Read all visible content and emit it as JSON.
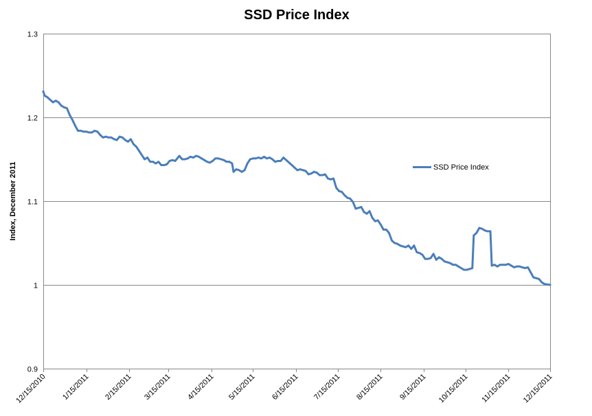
{
  "chart_data": {
    "type": "line",
    "title": "SSD Price Index",
    "xlabel": "",
    "ylabel": "Index, December 2011",
    "ylim": [
      0.9,
      1.3
    ],
    "yticks": [
      "0.9",
      "1",
      "1.1",
      "1.2",
      "1.3"
    ],
    "xlim": [
      "2010-12-15",
      "2011-12-15"
    ],
    "xticks": [
      "12/15/2010",
      "1/15/2011",
      "2/15/2011",
      "3/15/2011",
      "4/15/2011",
      "5/15/2011",
      "6/15/2011",
      "7/15/2011",
      "8/15/2011",
      "9/15/2011",
      "10/15/2011",
      "11/15/2011",
      "12/15/2011"
    ],
    "grid": "horizontal",
    "legend": "right",
    "series": [
      {
        "name": "SSD Price Index",
        "color": "#4a7ebb",
        "points": [
          [
            "2010-12-15",
            1.231
          ],
          [
            "2010-12-16",
            1.226
          ],
          [
            "2010-12-18",
            1.224
          ],
          [
            "2010-12-20",
            1.221
          ],
          [
            "2010-12-22",
            1.218
          ],
          [
            "2010-12-24",
            1.22
          ],
          [
            "2010-12-26",
            1.218
          ],
          [
            "2010-12-28",
            1.214
          ],
          [
            "2010-12-30",
            1.212
          ],
          [
            "2011-01-01",
            1.211
          ],
          [
            "2011-01-03",
            1.203
          ],
          [
            "2011-01-05",
            1.197
          ],
          [
            "2011-01-07",
            1.19
          ],
          [
            "2011-01-09",
            1.184
          ],
          [
            "2011-01-11",
            1.184
          ],
          [
            "2011-01-13",
            1.183
          ],
          [
            "2011-01-15",
            1.183
          ],
          [
            "2011-01-17",
            1.182
          ],
          [
            "2011-01-19",
            1.182
          ],
          [
            "2011-01-21",
            1.184
          ],
          [
            "2011-01-23",
            1.183
          ],
          [
            "2011-01-25",
            1.179
          ],
          [
            "2011-01-27",
            1.176
          ],
          [
            "2011-01-29",
            1.177
          ],
          [
            "2011-01-31",
            1.176
          ],
          [
            "2011-02-02",
            1.176
          ],
          [
            "2011-02-04",
            1.174
          ],
          [
            "2011-02-06",
            1.173
          ],
          [
            "2011-02-08",
            1.177
          ],
          [
            "2011-02-10",
            1.176
          ],
          [
            "2011-02-12",
            1.173
          ],
          [
            "2011-02-14",
            1.171
          ],
          [
            "2011-02-16",
            1.174
          ],
          [
            "2011-02-18",
            1.168
          ],
          [
            "2011-02-20",
            1.165
          ],
          [
            "2011-02-22",
            1.16
          ],
          [
            "2011-02-24",
            1.155
          ],
          [
            "2011-02-26",
            1.15
          ],
          [
            "2011-02-28",
            1.152
          ],
          [
            "2011-03-02",
            1.147
          ],
          [
            "2011-03-04",
            1.147
          ],
          [
            "2011-03-06",
            1.145
          ],
          [
            "2011-03-08",
            1.147
          ],
          [
            "2011-03-10",
            1.143
          ],
          [
            "2011-03-12",
            1.143
          ],
          [
            "2011-03-14",
            1.144
          ],
          [
            "2011-03-16",
            1.148
          ],
          [
            "2011-03-18",
            1.149
          ],
          [
            "2011-03-20",
            1.148
          ],
          [
            "2011-03-22",
            1.152
          ],
          [
            "2011-03-23",
            1.154
          ],
          [
            "2011-03-25",
            1.15
          ],
          [
            "2011-03-27",
            1.15
          ],
          [
            "2011-03-29",
            1.151
          ],
          [
            "2011-03-31",
            1.153
          ],
          [
            "2011-04-02",
            1.152
          ],
          [
            "2011-04-04",
            1.154
          ],
          [
            "2011-04-06",
            1.153
          ],
          [
            "2011-04-08",
            1.151
          ],
          [
            "2011-04-10",
            1.149
          ],
          [
            "2011-04-12",
            1.147
          ],
          [
            "2011-04-14",
            1.146
          ],
          [
            "2011-04-16",
            1.148
          ],
          [
            "2011-04-18",
            1.151
          ],
          [
            "2011-04-20",
            1.151
          ],
          [
            "2011-04-22",
            1.15
          ],
          [
            "2011-04-24",
            1.149
          ],
          [
            "2011-04-26",
            1.147
          ],
          [
            "2011-04-28",
            1.147
          ],
          [
            "2011-04-30",
            1.145
          ],
          [
            "2011-05-01",
            1.135
          ],
          [
            "2011-05-03",
            1.138
          ],
          [
            "2011-05-05",
            1.137
          ],
          [
            "2011-05-07",
            1.135
          ],
          [
            "2011-05-09",
            1.137
          ],
          [
            "2011-05-11",
            1.145
          ],
          [
            "2011-05-13",
            1.15
          ],
          [
            "2011-05-15",
            1.151
          ],
          [
            "2011-05-17",
            1.151
          ],
          [
            "2011-05-19",
            1.152
          ],
          [
            "2011-05-21",
            1.151
          ],
          [
            "2011-05-23",
            1.153
          ],
          [
            "2011-05-25",
            1.151
          ],
          [
            "2011-05-27",
            1.152
          ],
          [
            "2011-05-29",
            1.15
          ],
          [
            "2011-05-31",
            1.147
          ],
          [
            "2011-06-02",
            1.148
          ],
          [
            "2011-06-04",
            1.148
          ],
          [
            "2011-06-06",
            1.152
          ],
          [
            "2011-06-08",
            1.149
          ],
          [
            "2011-06-10",
            1.146
          ],
          [
            "2011-06-12",
            1.143
          ],
          [
            "2011-06-14",
            1.14
          ],
          [
            "2011-06-16",
            1.137
          ],
          [
            "2011-06-18",
            1.138
          ],
          [
            "2011-06-20",
            1.137
          ],
          [
            "2011-06-22",
            1.136
          ],
          [
            "2011-06-24",
            1.132
          ],
          [
            "2011-06-26",
            1.133
          ],
          [
            "2011-06-28",
            1.135
          ],
          [
            "2011-06-30",
            1.134
          ],
          [
            "2011-07-02",
            1.131
          ],
          [
            "2011-07-04",
            1.131
          ],
          [
            "2011-07-06",
            1.132
          ],
          [
            "2011-07-08",
            1.127
          ],
          [
            "2011-07-10",
            1.126
          ],
          [
            "2011-07-12",
            1.127
          ],
          [
            "2011-07-14",
            1.116
          ],
          [
            "2011-07-16",
            1.112
          ],
          [
            "2011-07-18",
            1.111
          ],
          [
            "2011-07-20",
            1.107
          ],
          [
            "2011-07-22",
            1.104
          ],
          [
            "2011-07-24",
            1.103
          ],
          [
            "2011-07-26",
            1.099
          ],
          [
            "2011-07-28",
            1.091
          ],
          [
            "2011-07-30",
            1.092
          ],
          [
            "2011-08-01",
            1.093
          ],
          [
            "2011-08-03",
            1.087
          ],
          [
            "2011-08-05",
            1.085
          ],
          [
            "2011-08-07",
            1.088
          ],
          [
            "2011-08-09",
            1.08
          ],
          [
            "2011-08-11",
            1.076
          ],
          [
            "2011-08-13",
            1.077
          ],
          [
            "2011-08-15",
            1.072
          ],
          [
            "2011-08-17",
            1.066
          ],
          [
            "2011-08-19",
            1.066
          ],
          [
            "2011-08-21",
            1.062
          ],
          [
            "2011-08-23",
            1.053
          ],
          [
            "2011-08-25",
            1.05
          ],
          [
            "2011-08-27",
            1.049
          ],
          [
            "2011-08-29",
            1.047
          ],
          [
            "2011-08-31",
            1.046
          ],
          [
            "2011-09-02",
            1.045
          ],
          [
            "2011-09-04",
            1.047
          ],
          [
            "2011-09-06",
            1.043
          ],
          [
            "2011-09-08",
            1.047
          ],
          [
            "2011-09-10",
            1.039
          ],
          [
            "2011-09-12",
            1.038
          ],
          [
            "2011-09-14",
            1.036
          ],
          [
            "2011-09-16",
            1.031
          ],
          [
            "2011-09-18",
            1.031
          ],
          [
            "2011-09-20",
            1.032
          ],
          [
            "2011-09-22",
            1.037
          ],
          [
            "2011-09-24",
            1.03
          ],
          [
            "2011-09-26",
            1.033
          ],
          [
            "2011-09-28",
            1.031
          ],
          [
            "2011-09-30",
            1.028
          ],
          [
            "2011-10-02",
            1.027
          ],
          [
            "2011-10-04",
            1.026
          ],
          [
            "2011-10-06",
            1.024
          ],
          [
            "2011-10-08",
            1.024
          ],
          [
            "2011-10-10",
            1.022
          ],
          [
            "2011-10-12",
            1.02
          ],
          [
            "2011-10-14",
            1.018
          ],
          [
            "2011-10-16",
            1.018
          ],
          [
            "2011-10-18",
            1.019
          ],
          [
            "2011-10-20",
            1.02
          ],
          [
            "2011-10-21",
            1.059
          ],
          [
            "2011-10-23",
            1.062
          ],
          [
            "2011-10-25",
            1.068
          ],
          [
            "2011-10-27",
            1.067
          ],
          [
            "2011-10-29",
            1.065
          ],
          [
            "2011-10-31",
            1.064
          ],
          [
            "2011-11-02",
            1.064
          ],
          [
            "2011-11-03",
            1.023
          ],
          [
            "2011-11-05",
            1.024
          ],
          [
            "2011-11-07",
            1.022
          ],
          [
            "2011-11-09",
            1.024
          ],
          [
            "2011-11-11",
            1.024
          ],
          [
            "2011-11-13",
            1.024
          ],
          [
            "2011-11-15",
            1.025
          ],
          [
            "2011-11-17",
            1.023
          ],
          [
            "2011-11-19",
            1.021
          ],
          [
            "2011-11-21",
            1.022
          ],
          [
            "2011-11-23",
            1.022
          ],
          [
            "2011-11-25",
            1.021
          ],
          [
            "2011-11-27",
            1.02
          ],
          [
            "2011-11-29",
            1.021
          ],
          [
            "2011-12-01",
            1.015
          ],
          [
            "2011-12-03",
            1.009
          ],
          [
            "2011-12-05",
            1.008
          ],
          [
            "2011-12-07",
            1.007
          ],
          [
            "2011-12-09",
            1.003
          ],
          [
            "2011-12-11",
            1.001
          ],
          [
            "2011-12-15",
            1.0
          ]
        ]
      }
    ]
  }
}
